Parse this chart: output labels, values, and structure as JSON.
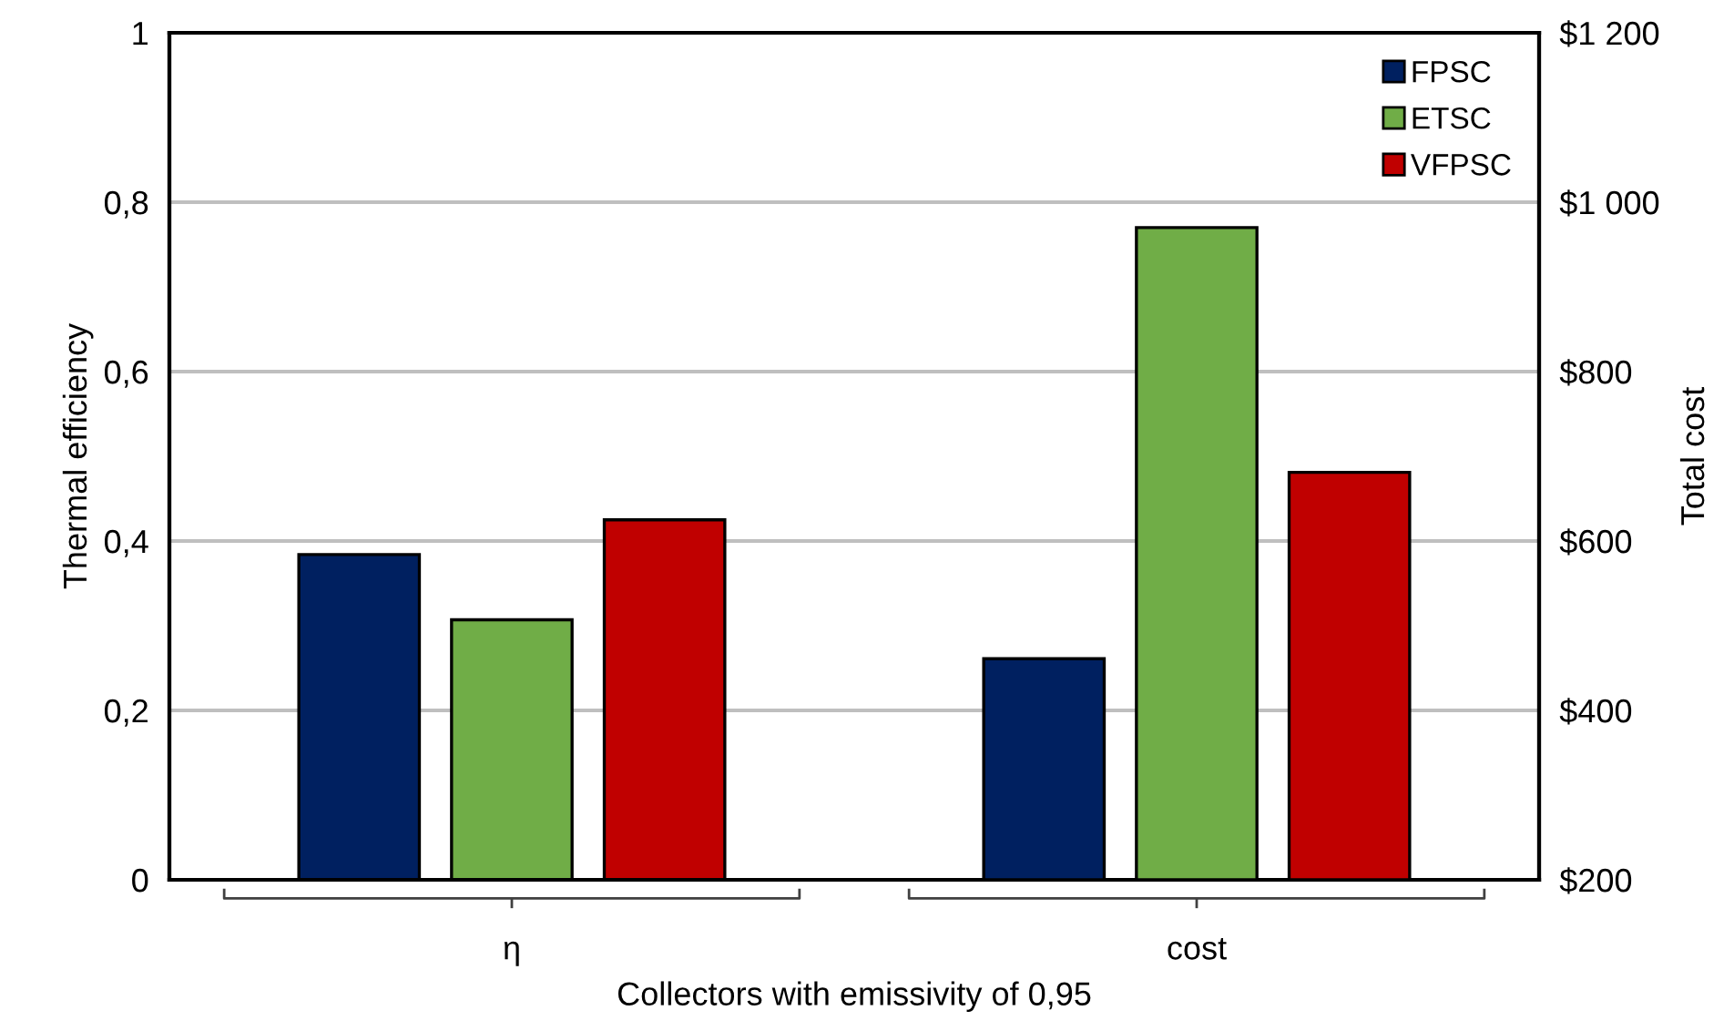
{
  "chart_data": {
    "type": "bar",
    "xlabel": "Collectors with emissivity of 0,95",
    "ylabel": "Thermal efficiency",
    "y2label": "Total cost",
    "categories": [
      "η",
      "cost"
    ],
    "series": [
      {
        "name": "FPSC",
        "color": "#002060",
        "values": [
          0.384,
          null
        ]
      },
      {
        "name": "ETSC",
        "color": "#70ad47",
        "values": [
          0.307,
          null
        ]
      },
      {
        "name": "VFPSC",
        "color": "#c00000",
        "values": [
          0.425,
          null
        ]
      },
      {
        "color": "#002060",
        "axis": "y2",
        "values": [
          null,
          461
        ]
      },
      {
        "color": "#70ad47",
        "axis": "y2",
        "values": [
          null,
          970
        ]
      },
      {
        "color": "#c00000",
        "axis": "y2",
        "values": [
          null,
          681
        ]
      }
    ],
    "ylim": [
      0,
      1
    ],
    "yticks": [
      0,
      {
        "value": 0.2,
        "label": "0,2"
      },
      {
        "value": 0.4,
        "label": "0,4"
      },
      {
        "value": 0.6,
        "label": "0,6"
      },
      {
        "value": 0.8,
        "label": "0,8"
      },
      1
    ],
    "y2lim": [
      200,
      1200
    ],
    "y2ticks": [
      {
        "value": 200,
        "label": "$200"
      },
      {
        "value": 400,
        "label": "$400"
      },
      {
        "value": 600,
        "label": "$600"
      },
      {
        "value": 800,
        "label": "$800"
      },
      {
        "value": 1000,
        "label": "$1 000"
      },
      {
        "value": 1200,
        "label": "$1 200"
      }
    ],
    "grid": "y",
    "legend": "top right"
  }
}
